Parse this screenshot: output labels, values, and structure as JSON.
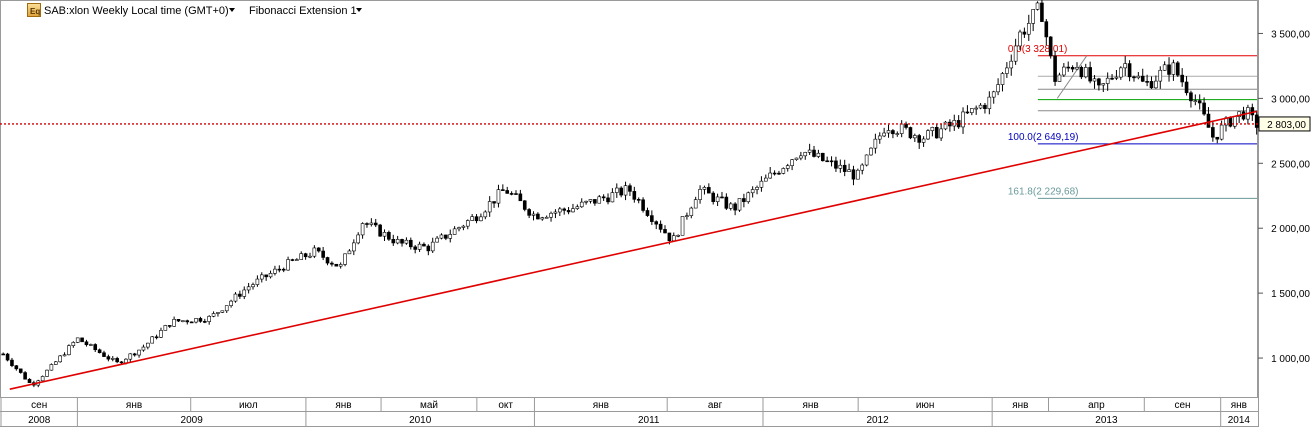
{
  "header": {
    "symbol": "SAB:xlon Weekly Local time (GMT+0)",
    "study": "Fibonacci Extension 1",
    "app_icon": "eq-icon",
    "dropdown_icon": "caret-down-icon"
  },
  "chart_data": {
    "type": "candlestick",
    "title": "",
    "price_axis": {
      "min": 700,
      "max": 3750,
      "ticks": [
        {
          "value": 3500,
          "label": "3 500,00"
        },
        {
          "value": 3000,
          "label": "3 000,00"
        },
        {
          "value": 2500,
          "label": "2 500,00"
        },
        {
          "value": 2000,
          "label": "2 000,00"
        },
        {
          "value": 1500,
          "label": "1 500,00"
        },
        {
          "value": 1000,
          "label": "1 000,00"
        }
      ]
    },
    "time_axis": {
      "start": "2008-09-01",
      "end": "2014-02-28",
      "month_ticks": [
        {
          "date": "2008-09-01",
          "label": "сен"
        },
        {
          "date": "2009-01-01",
          "label": "янв"
        },
        {
          "date": "2009-07-01",
          "label": "июл"
        },
        {
          "date": "2010-01-01",
          "label": "янв"
        },
        {
          "date": "2010-05-01",
          "label": "май"
        },
        {
          "date": "2010-10-01",
          "label": "окт"
        },
        {
          "date": "2011-01-01",
          "label": "янв"
        },
        {
          "date": "2011-08-01",
          "label": "авг"
        },
        {
          "date": "2012-01-01",
          "label": "янв"
        },
        {
          "date": "2012-06-01",
          "label": "июн"
        },
        {
          "date": "2013-01-01",
          "label": "янв"
        },
        {
          "date": "2013-04-01",
          "label": "апр"
        },
        {
          "date": "2013-09-01",
          "label": "сен"
        },
        {
          "date": "2014-01-01",
          "label": "янв"
        }
      ],
      "year_ticks": [
        {
          "date": "2008-09-01",
          "label": "2008"
        },
        {
          "date": "2009-01-01",
          "label": "2009"
        },
        {
          "date": "2010-01-01",
          "label": "2010"
        },
        {
          "date": "2011-01-01",
          "label": "2011"
        },
        {
          "date": "2012-01-01",
          "label": "2012"
        },
        {
          "date": "2013-01-01",
          "label": "2013"
        },
        {
          "date": "2014-01-01",
          "label": "2014"
        }
      ]
    },
    "price_path": [
      [
        "2008-09-01",
        1050
      ],
      [
        "2008-10-20",
        790
      ],
      [
        "2008-11-20",
        930
      ],
      [
        "2009-01-01",
        1150
      ],
      [
        "2009-03-05",
        960
      ],
      [
        "2009-04-15",
        1080
      ],
      [
        "2009-06-01",
        1280
      ],
      [
        "2009-08-01",
        1310
      ],
      [
        "2009-10-01",
        1550
      ],
      [
        "2009-12-01",
        1720
      ],
      [
        "2010-01-15",
        1820
      ],
      [
        "2010-02-25",
        1700
      ],
      [
        "2010-04-01",
        2050
      ],
      [
        "2010-06-01",
        1880
      ],
      [
        "2010-07-15",
        1850
      ],
      [
        "2010-10-01",
        2100
      ],
      [
        "2010-11-15",
        2300
      ],
      [
        "2011-01-01",
        2100
      ],
      [
        "2011-03-01",
        2150
      ],
      [
        "2011-06-01",
        2300
      ],
      [
        "2011-08-10",
        1900
      ],
      [
        "2011-09-20",
        2300
      ],
      [
        "2011-11-15",
        2150
      ],
      [
        "2012-01-01",
        2350
      ],
      [
        "2012-03-01",
        2600
      ],
      [
        "2012-04-15",
        2500
      ],
      [
        "2012-06-01",
        2400
      ],
      [
        "2012-07-15",
        2800
      ],
      [
        "2012-09-15",
        2700
      ],
      [
        "2012-11-01",
        2800
      ],
      [
        "2013-01-01",
        3000
      ],
      [
        "2013-02-15",
        3500
      ],
      [
        "2013-03-20",
        3700
      ],
      [
        "2013-04-10",
        3150
      ],
      [
        "2013-05-15",
        3280
      ],
      [
        "2013-06-20",
        3050
      ],
      [
        "2013-07-30",
        3280
      ],
      [
        "2013-09-01",
        3100
      ],
      [
        "2013-10-15",
        3250
      ],
      [
        "2013-11-20",
        3000
      ],
      [
        "2013-12-20",
        2700
      ],
      [
        "2014-01-20",
        2850
      ],
      [
        "2014-02-10",
        2900
      ],
      [
        "2014-02-24",
        2803
      ]
    ],
    "trendline": {
      "color": "#e00000",
      "from": [
        "2008-09-15",
        760
      ],
      "to": [
        "2014-02-28",
        2900
      ]
    },
    "last_price": {
      "value": 2803,
      "label": "2 803,00",
      "color": "#d00000"
    },
    "fibonacci_extension": {
      "start_date": "2013-03-15",
      "end_date": "2014-02-28",
      "levels": [
        {
          "price": 3328.01,
          "label": "0.0(3 328,01)",
          "color": "#e00000",
          "show_label": true
        },
        {
          "price": 3170,
          "label": "",
          "color": "#aaaaaa",
          "show_label": false
        },
        {
          "price": 3070,
          "label": "",
          "color": "#888888",
          "show_label": false
        },
        {
          "price": 2990,
          "label": "",
          "color": "#00a000",
          "show_label": false
        },
        {
          "price": 2905,
          "label": "",
          "color": "#888888",
          "show_label": false
        },
        {
          "price": 2649.19,
          "label": "100.0(2 649,19)",
          "color": "#0000c0",
          "show_label": true
        },
        {
          "price": 2229.68,
          "label": "161.8(2 229,68)",
          "color": "#6a9a9a",
          "show_label": true
        }
      ],
      "helper_from": [
        "2013-04-15",
        3000
      ],
      "helper_to": [
        "2013-06-01",
        3328.01
      ]
    }
  }
}
